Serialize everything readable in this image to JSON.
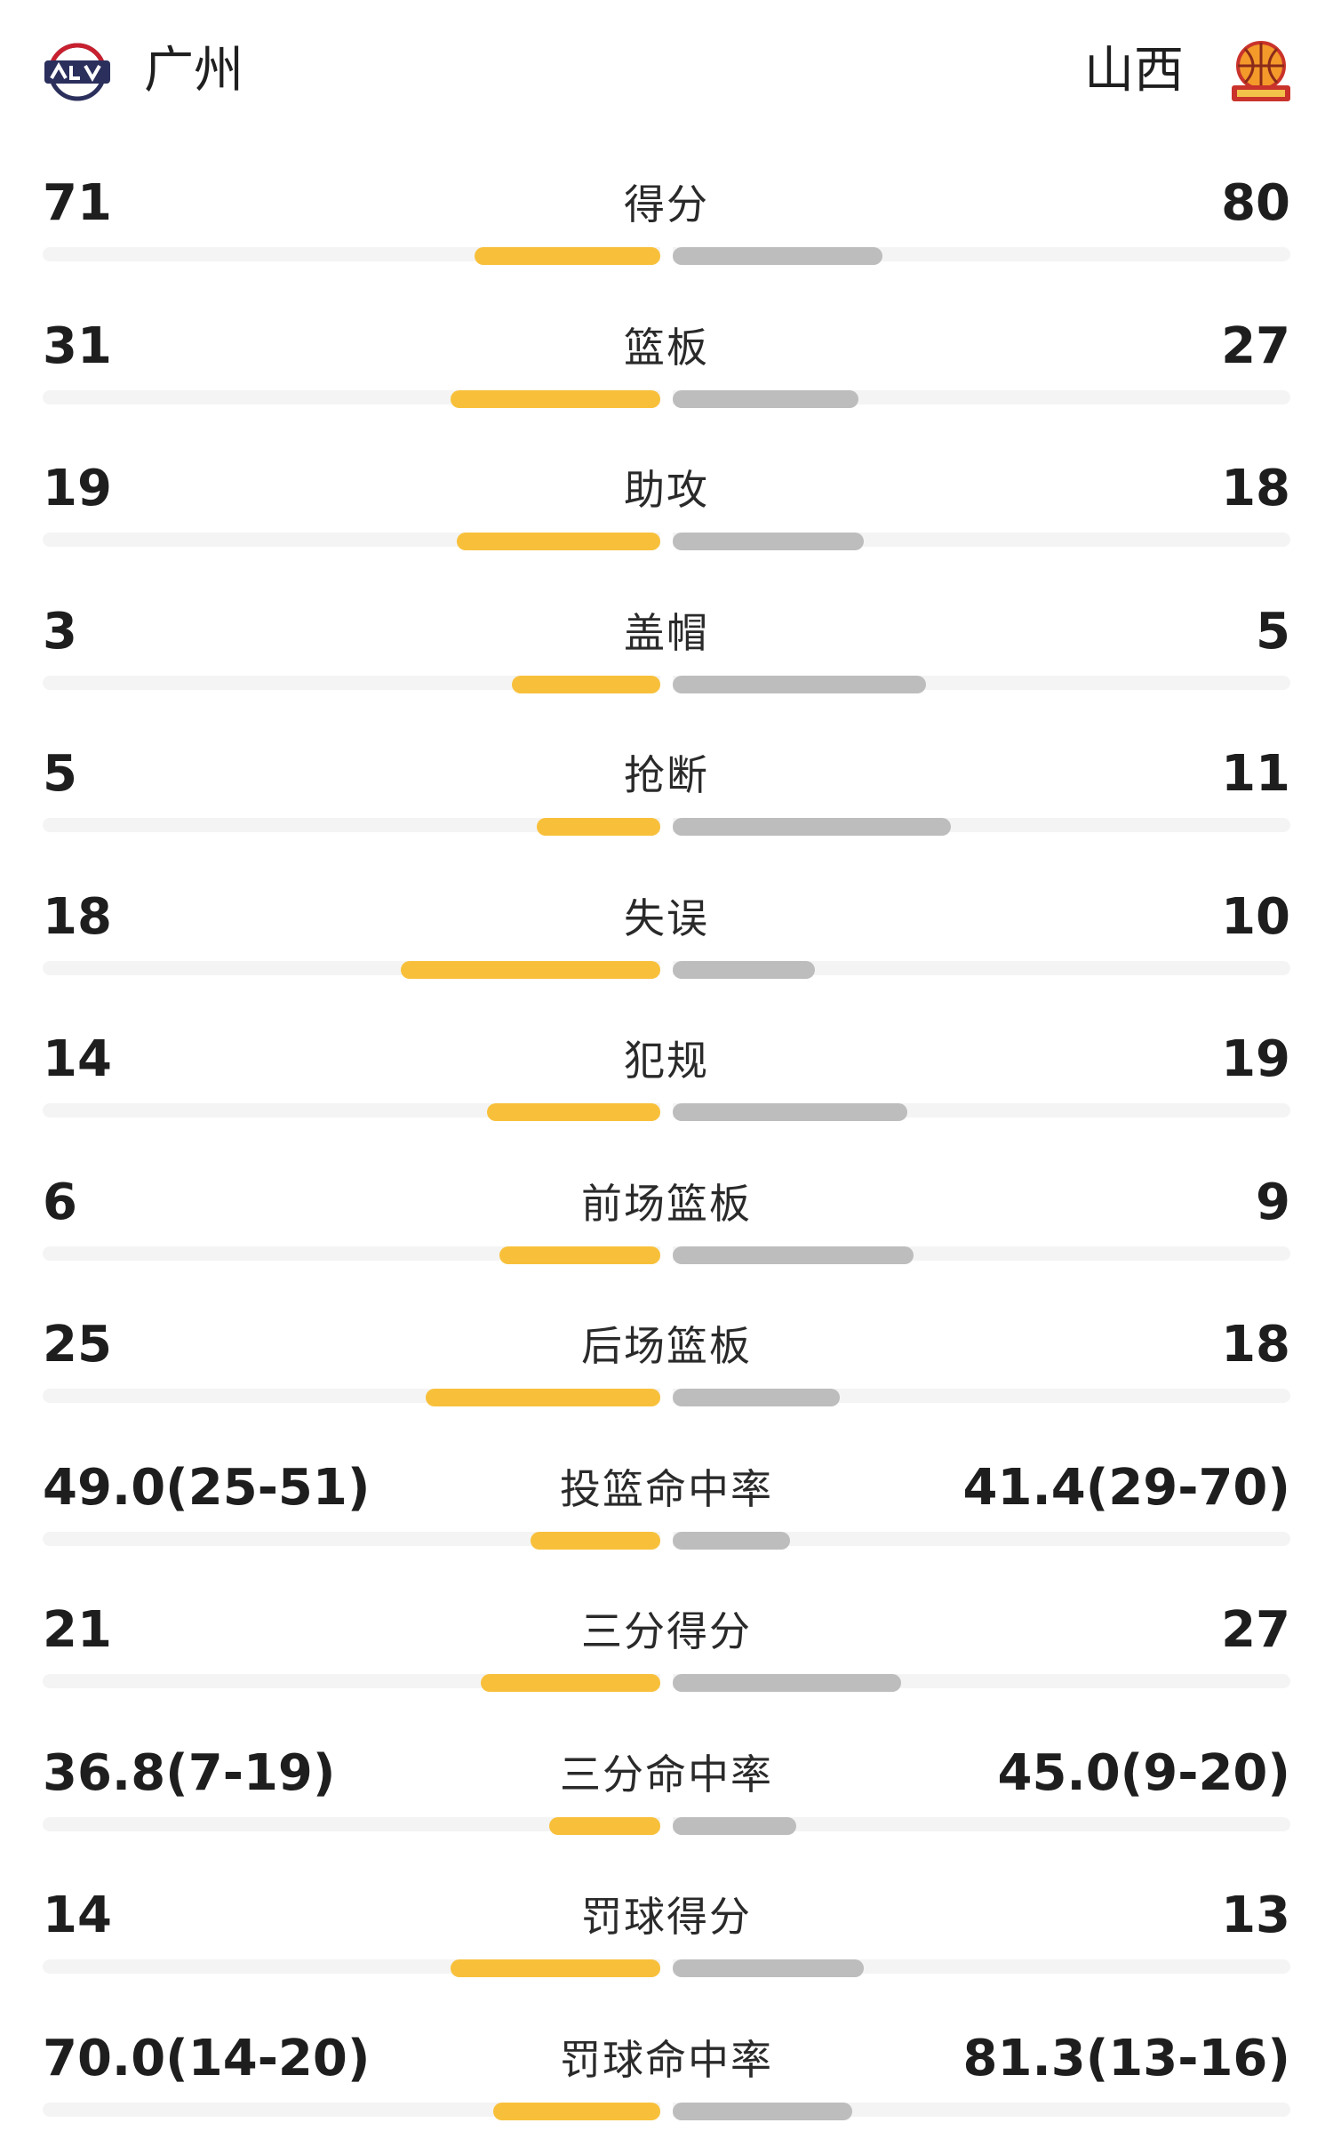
{
  "header": {
    "home_team": "广州",
    "away_team": "山西"
  },
  "colors": {
    "home_bar": "#f8c03a",
    "away_bar": "#bdbdbd",
    "track": "#f4f4f4"
  },
  "stats": [
    {
      "label": "得分",
      "home": "71",
      "away": "80",
      "home_frac": 0.3,
      "away_frac": 0.34
    },
    {
      "label": "篮板",
      "home": "31",
      "away": "27",
      "home_frac": 0.34,
      "away_frac": 0.3
    },
    {
      "label": "助攻",
      "home": "19",
      "away": "18",
      "home_frac": 0.33,
      "away_frac": 0.31
    },
    {
      "label": "盖帽",
      "home": "3",
      "away": "5",
      "home_frac": 0.24,
      "away_frac": 0.41
    },
    {
      "label": "抢断",
      "home": "5",
      "away": "11",
      "home_frac": 0.2,
      "away_frac": 0.45
    },
    {
      "label": "失误",
      "home": "18",
      "away": "10",
      "home_frac": 0.42,
      "away_frac": 0.23
    },
    {
      "label": "犯规",
      "home": "14",
      "away": "19",
      "home_frac": 0.28,
      "away_frac": 0.38
    },
    {
      "label": "前场篮板",
      "home": "6",
      "away": "9",
      "home_frac": 0.26,
      "away_frac": 0.39
    },
    {
      "label": "后场篮板",
      "home": "25",
      "away": "18",
      "home_frac": 0.38,
      "away_frac": 0.27
    },
    {
      "label": "投篮命中率",
      "home": "49.0(25-51)",
      "away": "41.4(29-70)",
      "home_frac": 0.21,
      "away_frac": 0.19
    },
    {
      "label": "三分得分",
      "home": "21",
      "away": "27",
      "home_frac": 0.29,
      "away_frac": 0.37
    },
    {
      "label": "三分命中率",
      "home": "36.8(7-19)",
      "away": "45.0(9-20)",
      "home_frac": 0.18,
      "away_frac": 0.2
    },
    {
      "label": "罚球得分",
      "home": "14",
      "away": "13",
      "home_frac": 0.34,
      "away_frac": 0.31
    },
    {
      "label": "罚球命中率",
      "home": "70.0(14-20)",
      "away": "81.3(13-16)",
      "home_frac": 0.27,
      "away_frac": 0.29
    }
  ]
}
